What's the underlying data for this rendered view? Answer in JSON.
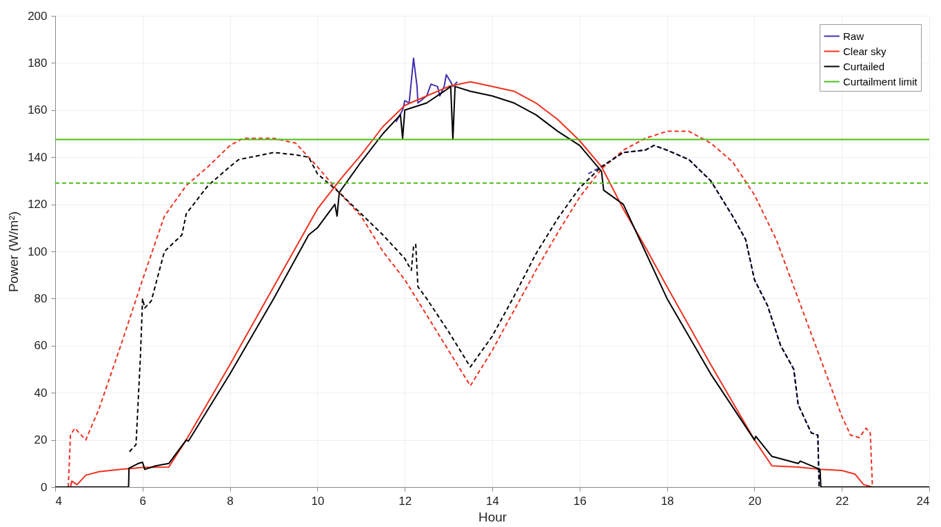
{
  "chart_data": {
    "type": "line",
    "xlabel": "Hour",
    "ylabel": "Power (W/m²)",
    "xlim": [
      4,
      24
    ],
    "xticks": [
      4,
      6,
      8,
      10,
      12,
      14,
      16,
      18,
      20,
      22,
      24
    ],
    "ylim": [
      0,
      200
    ],
    "yticks": [
      0,
      20,
      40,
      60,
      80,
      100,
      120,
      140,
      160,
      180,
      200
    ],
    "grid": true,
    "legend": "top right",
    "marker": "none",
    "series": [
      {
        "name": "Raw",
        "color": "#3f2fb0",
        "line_style": "solid",
        "x": [
          11.8,
          11.95,
          12.0,
          12.1,
          12.2,
          12.28,
          12.3,
          12.5,
          12.6,
          12.75,
          12.8,
          12.9,
          12.95,
          13.05,
          13.1,
          13.2
        ],
        "values": [
          155,
          160,
          164,
          163,
          182,
          170,
          163,
          166,
          171,
          170,
          166,
          170,
          175,
          172,
          170,
          172
        ]
      },
      {
        "color": "#3f2fb0",
        "line_style": "dashed",
        "x": [
          16.2,
          16.5,
          17,
          17.5,
          17.7,
          18,
          18.5,
          19,
          19.5,
          19.8,
          20,
          20.3,
          20.6,
          20.9,
          21,
          21.3,
          21.45,
          21.48,
          24
        ],
        "values": [
          133,
          136,
          142,
          143,
          145,
          143,
          139,
          130,
          115,
          105,
          88,
          77,
          60,
          50,
          35,
          23,
          22,
          0,
          0
        ]
      },
      {
        "name": "Clear sky",
        "color": "#f0301e",
        "line_style": "solid",
        "x": [
          4.35,
          4.38,
          4.5,
          4.7,
          5,
          5.5,
          5.8,
          6,
          6.6,
          7,
          8,
          9,
          10,
          10.5,
          11,
          11.5,
          12,
          12.5,
          13,
          13.5,
          14,
          14.5,
          15,
          15.5,
          16,
          16.5,
          17,
          17.5,
          18,
          19,
          20,
          20.4,
          21,
          21.5,
          22,
          22.3,
          22.5,
          22.6,
          22.7,
          24
        ],
        "values": [
          0,
          2.5,
          1,
          5,
          6.5,
          7.5,
          8,
          8.3,
          8.5,
          20,
          52,
          85,
          118,
          130,
          141,
          153,
          162,
          166,
          170,
          172,
          170,
          168,
          163,
          156,
          147,
          136,
          118,
          102,
          85,
          52,
          20,
          9,
          8.5,
          7.5,
          7,
          5.5,
          1,
          0.5,
          0,
          0
        ]
      },
      {
        "color": "#f0301e",
        "line_style": "dashed",
        "x": [
          4.3,
          4.35,
          4.45,
          4.7,
          5,
          5.5,
          6,
          6.5,
          7,
          7.5,
          8,
          8.3,
          9,
          9.5,
          10,
          10.5,
          11,
          11.5,
          12,
          12.5,
          13,
          13.5,
          14,
          14.5,
          15,
          15.5,
          16,
          16.5,
          17,
          17.5,
          18,
          18.5,
          19,
          19.5,
          20,
          20.5,
          21,
          21.5,
          22,
          22.2,
          22.4,
          22.55,
          22.65,
          22.7,
          24
        ],
        "values": [
          0,
          22,
          25,
          20,
          33,
          60,
          88,
          115,
          128,
          136,
          145,
          148,
          148,
          146,
          136,
          125,
          115,
          100,
          88,
          73,
          58,
          43,
          58,
          75,
          92,
          108,
          123,
          135,
          143,
          148,
          151,
          151,
          146,
          138,
          124,
          105,
          80,
          55,
          30,
          22,
          21,
          25,
          23,
          0,
          0
        ]
      },
      {
        "name": "Curtailed",
        "color": "#000000",
        "line_style": "solid",
        "x": [
          4,
          5.68,
          5.69,
          5.9,
          6,
          6.05,
          6.3,
          6.6,
          7,
          7.05,
          8,
          9,
          9.8,
          10,
          10.2,
          10.4,
          10.45,
          10.5,
          11,
          11.5,
          11.9,
          11.95,
          12,
          12.5,
          12.9,
          13.05,
          13.1,
          13.15,
          13.5,
          14,
          14.5,
          15,
          15.5,
          16,
          16.5,
          16.55,
          17,
          17.5,
          18,
          19,
          20,
          20.03,
          20.4,
          21,
          21.05,
          21.5,
          21.52,
          24
        ],
        "values": [
          0,
          0,
          8,
          10,
          10.5,
          7.5,
          9,
          10,
          20,
          19.5,
          48,
          80,
          107,
          110,
          115,
          120,
          115,
          125,
          138,
          150,
          158,
          148,
          160,
          163,
          168,
          170,
          147.5,
          170,
          168,
          166,
          163,
          158,
          151,
          145,
          134,
          126,
          120,
          100,
          80,
          48,
          20,
          21.5,
          13,
          10,
          11,
          7.5,
          0,
          0
        ]
      },
      {
        "color": "#000000",
        "line_style": "dashed",
        "x": [
          5.7,
          5.85,
          5.95,
          6,
          6.05,
          6.2,
          6.5,
          6.9,
          7,
          7.5,
          8,
          8.2,
          9,
          9.5,
          9.8,
          10,
          10.5,
          11,
          11.5,
          12,
          12.15,
          12.2,
          12.25,
          12.3,
          12.5,
          13,
          13.5,
          14,
          14.5,
          15,
          15.5,
          16,
          16.5,
          17,
          17.5,
          17.7,
          18,
          18.5,
          19,
          19.5,
          19.8,
          20,
          20.3,
          20.6,
          20.9,
          21,
          21.3,
          21.45,
          21.48
        ],
        "values": [
          15,
          18,
          55,
          80,
          76,
          79,
          100,
          107,
          116,
          128,
          136,
          139,
          142,
          141,
          140,
          133,
          125,
          116,
          107,
          97,
          92,
          102,
          103,
          85,
          80,
          66,
          51,
          64,
          81,
          99,
          114,
          127,
          136,
          142,
          143,
          145,
          143,
          139,
          130,
          115,
          105,
          88,
          77,
          60,
          50,
          35,
          23,
          22,
          0
        ]
      },
      {
        "name": "Curtailment limit",
        "color": "#4cbb17",
        "line_style": "solid",
        "x": [
          4,
          24
        ],
        "values": [
          147.5,
          147.5
        ]
      },
      {
        "color": "#4cbb17",
        "line_style": "dashed",
        "x": [
          4,
          24
        ],
        "values": [
          129,
          129
        ]
      }
    ]
  }
}
